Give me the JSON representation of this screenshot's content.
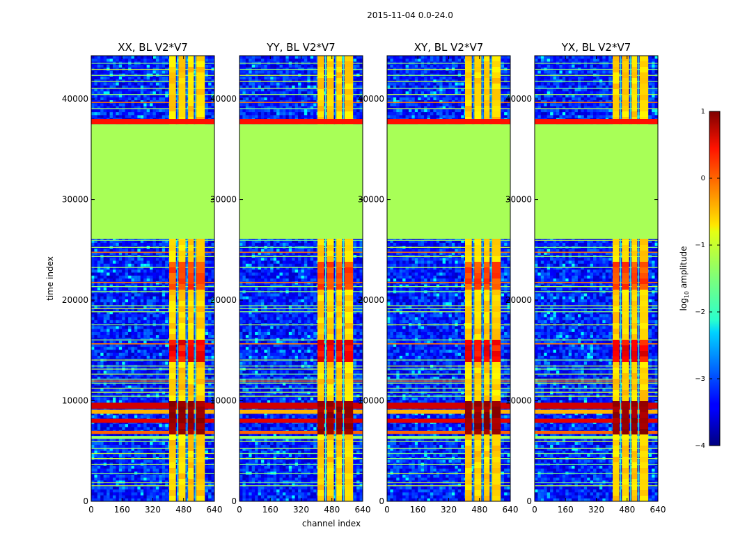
{
  "chart_data": {
    "type": "heatmap",
    "title": "2015-11-04 0.0-24.0",
    "xlabel": "channel index",
    "ylabel": "time index",
    "xlim": [
      0,
      640
    ],
    "ylim": [
      0,
      44300
    ],
    "xticks": [
      0,
      160,
      320,
      480,
      640
    ],
    "yticks": [
      0,
      10000,
      20000,
      30000,
      40000
    ],
    "colorbar": {
      "label_prefix": "log",
      "label_sub": "10",
      "label_suffix": " amplitude",
      "range": [
        -4,
        1
      ],
      "ticks": [
        1,
        0,
        -1,
        -2,
        -3,
        -4
      ],
      "tick_labels": [
        "1",
        "0",
        "−1",
        "−2",
        "−3",
        "−4"
      ],
      "colormap": "jet"
    },
    "panels": [
      {
        "title": "XX, BL V2*V7"
      },
      {
        "title": "YY, BL V2*V7"
      },
      {
        "title": "XY, BL V2*V7"
      },
      {
        "title": "YX, BL V2*V7"
      }
    ],
    "structure": {
      "flagged_time_range": [
        26100,
        37500
      ],
      "flagged_level": -1.3,
      "edge_band_time_range": [
        37500,
        38000
      ],
      "edge_band_level": 0.3,
      "rfi_channel_range": [
        405,
        590
      ],
      "strong_rfi_time_range": [
        6500,
        9800
      ]
    }
  }
}
